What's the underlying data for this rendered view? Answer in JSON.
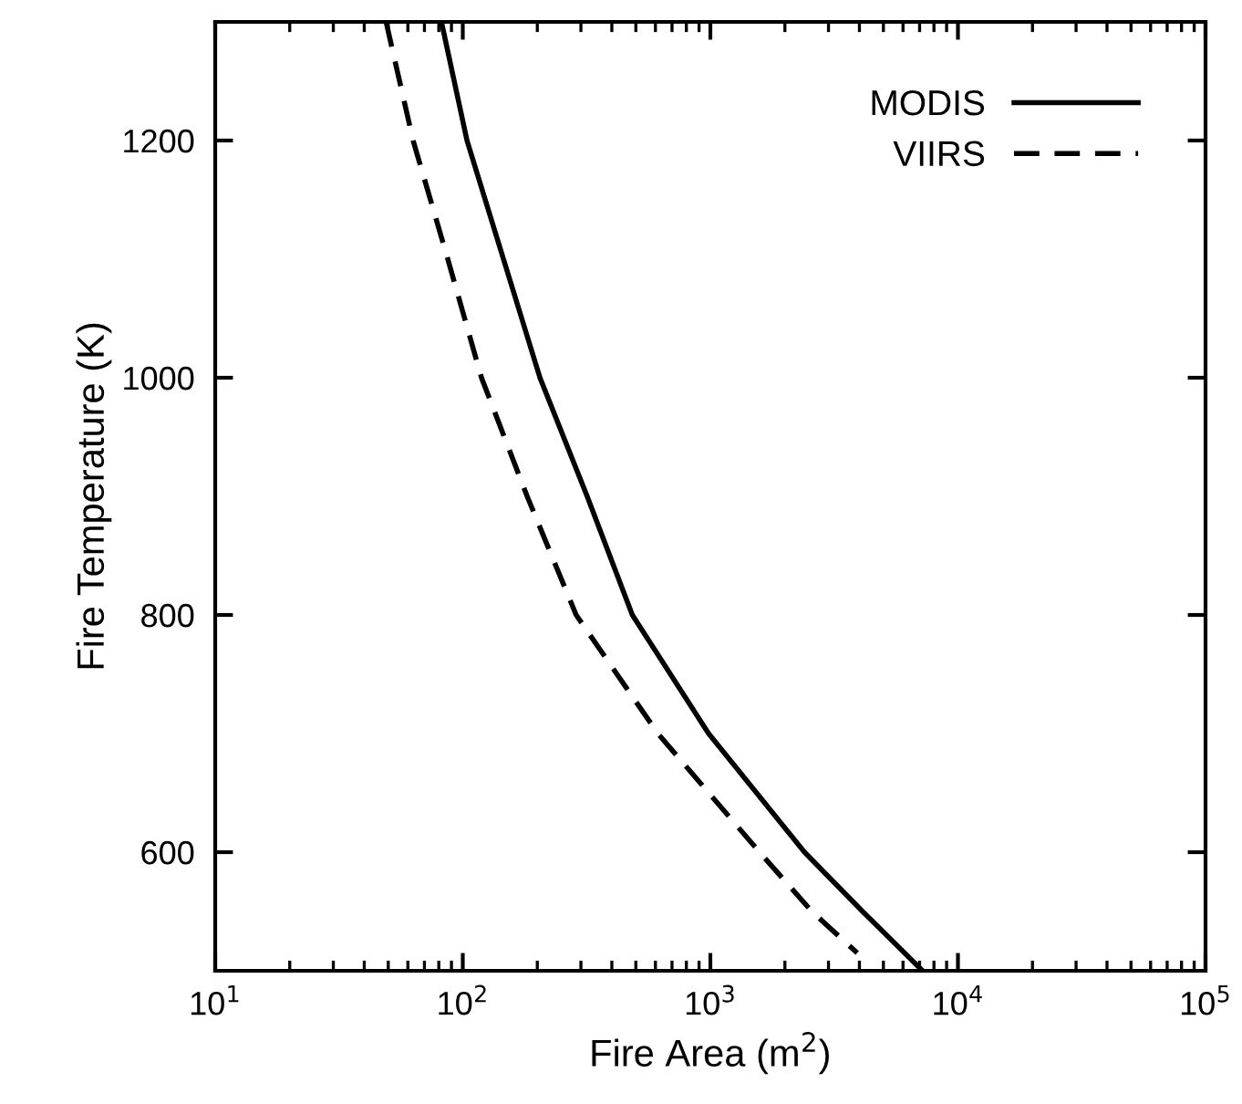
{
  "chart_data": {
    "type": "line",
    "xlabel": "Fire Area (m$^{2}$)",
    "ylabel": "Fire Temperature (K)",
    "log": "x",
    "xlim": [
      10,
      100000
    ],
    "ylim": [
      500,
      1300
    ],
    "xticks": [
      {
        "value": 10,
        "label": "10$^{1}$"
      },
      {
        "value": 100,
        "label": "10$^{2}$"
      },
      {
        "value": 1000,
        "label": "10$^{3}$"
      },
      {
        "value": 10000,
        "label": "10$^{4}$"
      },
      {
        "value": 100000,
        "label": "10$^{5}$"
      }
    ],
    "yticks": [
      600,
      800,
      1000,
      1200
    ],
    "grid": false,
    "legend": "top right",
    "series": [
      {
        "name": "MODIS",
        "color": "#000000",
        "line_style": "solid",
        "x": [
          82,
          104,
          146,
          205,
          318,
          484,
          984,
          2400,
          4120,
          7200
        ],
        "values": [
          1300,
          1200,
          1100,
          1000,
          900,
          800,
          700,
          600,
          550,
          500
        ]
      },
      {
        "name": "VIIRS",
        "color": "#000000",
        "line_style": "dashed",
        "x": [
          49,
          63,
          87,
          119,
          182,
          287,
          614,
          1580,
          2570,
          3920
        ],
        "values": [
          1300,
          1200,
          1100,
          1000,
          900,
          800,
          700,
          600,
          550,
          515
        ]
      }
    ]
  }
}
